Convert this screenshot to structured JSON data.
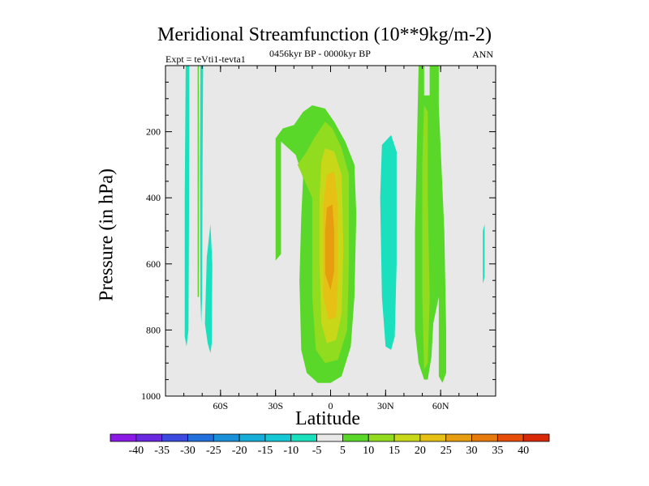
{
  "chart_data": {
    "type": "heatmap",
    "title": "Meridional Streamfunction (10**9kg/m-2)",
    "subtitle": "0456kyr BP - 0000kyr BP",
    "experiment_label": "Expt = teVti1-tevta1",
    "season_label": "ANN",
    "xlabel": "Latitude",
    "ylabel": "Pressure (in hPa)",
    "xlim": [
      -90,
      90
    ],
    "ylim": [
      1000,
      0
    ],
    "x_ticks": [
      {
        "value": -60,
        "label": "60S"
      },
      {
        "value": -30,
        "label": "30S"
      },
      {
        "value": 0,
        "label": "0"
      },
      {
        "value": 30,
        "label": "30N"
      },
      {
        "value": 60,
        "label": "60N"
      }
    ],
    "y_ticks": [
      {
        "value": 200,
        "label": "200"
      },
      {
        "value": 400,
        "label": "400"
      },
      {
        "value": 600,
        "label": "600"
      },
      {
        "value": 800,
        "label": "800"
      },
      {
        "value": 1000,
        "label": "1000"
      }
    ],
    "colorbar": {
      "labels": [
        "-40",
        "-35",
        "-30",
        "-25",
        "-20",
        "-15",
        "-10",
        "-5",
        "5",
        "10",
        "15",
        "20",
        "25",
        "30",
        "35",
        "40"
      ],
      "colors": [
        "#8c1ae6",
        "#6a28e0",
        "#3c4ae0",
        "#2270dc",
        "#1a90d8",
        "#16aed8",
        "#16c8d6",
        "#1ae0be",
        "#e8e8e8",
        "#5ad82a",
        "#92dc20",
        "#c8d818",
        "#e6c014",
        "#e69e10",
        "#e67a0c",
        "#e64e0a",
        "#d82a08"
      ]
    },
    "background_color": "#e8e8e8",
    "regions": [
      {
        "name": "sh-polar-neg-a",
        "level": -7.5,
        "points": [
          [
            -79,
            0
          ],
          [
            -77,
            0
          ],
          [
            -77,
            240
          ],
          [
            -77.5,
            800
          ],
          [
            -78.5,
            850
          ],
          [
            -79.5,
            820
          ],
          [
            -79.5,
            400
          ]
        ]
      },
      {
        "name": "sh-polar-neg-b",
        "level": -7.5,
        "points": [
          [
            -71,
            0
          ],
          [
            -69.5,
            0
          ],
          [
            -69.8,
            300
          ],
          [
            -70,
            700
          ],
          [
            -70.5,
            780
          ],
          [
            -71,
            700
          ],
          [
            -71.2,
            300
          ]
        ]
      },
      {
        "name": "sh-polar-neg-c",
        "level": -7.5,
        "points": [
          [
            -67.5,
            580
          ],
          [
            -65.5,
            480
          ],
          [
            -64.5,
            600
          ],
          [
            -64.8,
            840
          ],
          [
            -65.5,
            870
          ],
          [
            -67,
            840
          ],
          [
            -68.5,
            780
          ]
        ]
      },
      {
        "name": "sh-polar-pos-line",
        "level": 7.5,
        "points": [
          [
            -72.5,
            0
          ],
          [
            -71.8,
            0
          ],
          [
            -71.8,
            700
          ],
          [
            -72.5,
            700
          ]
        ]
      },
      {
        "name": "nh-polar-neg",
        "level": -7.5,
        "points": [
          [
            83,
            500
          ],
          [
            84,
            480
          ],
          [
            84,
            640
          ],
          [
            83,
            660
          ]
        ]
      },
      {
        "name": "tropical-ring-5",
        "level": 7.5,
        "points": [
          [
            -15,
            140
          ],
          [
            -10,
            120
          ],
          [
            -3,
            130
          ],
          [
            2,
            170
          ],
          [
            8,
            230
          ],
          [
            13,
            300
          ],
          [
            14,
            450
          ],
          [
            13,
            700
          ],
          [
            11,
            850
          ],
          [
            6,
            940
          ],
          [
            0,
            960
          ],
          [
            -7,
            960
          ],
          [
            -13,
            930
          ],
          [
            -16,
            860
          ],
          [
            -17,
            650
          ],
          [
            -16,
            460
          ],
          [
            -15,
            340
          ],
          [
            -19,
            270
          ],
          [
            -27,
            230
          ],
          [
            -27,
            570
          ],
          [
            -30,
            590
          ],
          [
            -30,
            220
          ],
          [
            -26,
            190
          ],
          [
            -20,
            180
          ]
        ]
      },
      {
        "name": "tropical-ring-10",
        "level": 12.5,
        "points": [
          [
            -9,
            220
          ],
          [
            -3,
            170
          ],
          [
            1,
            190
          ],
          [
            6,
            250
          ],
          [
            10,
            330
          ],
          [
            10,
            600
          ],
          [
            9,
            800
          ],
          [
            4,
            890
          ],
          [
            -3,
            900
          ],
          [
            -8,
            860
          ],
          [
            -10,
            700
          ],
          [
            -10,
            400
          ],
          [
            -18,
            300
          ],
          [
            -13,
            260
          ]
        ]
      },
      {
        "name": "tropical-ring-15",
        "level": 17.5,
        "points": [
          [
            -3,
            250
          ],
          [
            2,
            260
          ],
          [
            6,
            330
          ],
          [
            7,
            550
          ],
          [
            6,
            750
          ],
          [
            3,
            830
          ],
          [
            -2,
            840
          ],
          [
            -5,
            780
          ],
          [
            -6,
            600
          ],
          [
            -6,
            400
          ],
          [
            -5,
            290
          ]
        ]
      },
      {
        "name": "tropical-ring-20",
        "level": 22.5,
        "points": [
          [
            -2,
            330
          ],
          [
            2,
            320
          ],
          [
            4,
            420
          ],
          [
            4,
            650
          ],
          [
            3,
            760
          ],
          [
            -1,
            770
          ],
          [
            -4,
            700
          ],
          [
            -4,
            420
          ]
        ]
      },
      {
        "name": "tropical-ring-25",
        "level": 27.5,
        "points": [
          [
            -2,
            430
          ],
          [
            1,
            420
          ],
          [
            2,
            500
          ],
          [
            2,
            620
          ],
          [
            0,
            680
          ],
          [
            -3,
            630
          ],
          [
            -3,
            500
          ]
        ]
      },
      {
        "name": "nh-subtropical-neg",
        "level": -7.5,
        "points": [
          [
            28,
            240
          ],
          [
            33,
            210
          ],
          [
            36,
            260
          ],
          [
            36,
            600
          ],
          [
            35,
            820
          ],
          [
            33,
            860
          ],
          [
            30,
            850
          ],
          [
            28,
            700
          ],
          [
            27,
            400
          ]
        ]
      },
      {
        "name": "nh-midlat-pos-a",
        "level": 7.5,
        "points": [
          [
            48,
            0
          ],
          [
            51,
            0
          ],
          [
            51,
            90
          ],
          [
            54,
            90
          ],
          [
            54,
            0
          ],
          [
            59,
            0
          ],
          [
            59,
            120
          ],
          [
            60,
            250
          ],
          [
            62,
            500
          ],
          [
            63,
            800
          ],
          [
            63,
            930
          ],
          [
            61,
            960
          ],
          [
            59,
            940
          ],
          [
            59,
            700
          ],
          [
            56,
            780
          ],
          [
            55,
            880
          ],
          [
            53,
            950
          ],
          [
            51,
            950
          ],
          [
            48,
            900
          ],
          [
            46,
            800
          ],
          [
            46,
            500
          ],
          [
            47,
            250
          ]
        ]
      },
      {
        "name": "nh-midlat-pos-b",
        "level": 12.5,
        "points": [
          [
            51,
            120
          ],
          [
            53,
            140
          ],
          [
            53,
            400
          ],
          [
            54,
            700
          ],
          [
            53,
            900
          ],
          [
            51,
            920
          ],
          [
            50,
            700
          ],
          [
            50,
            300
          ]
        ]
      }
    ]
  }
}
